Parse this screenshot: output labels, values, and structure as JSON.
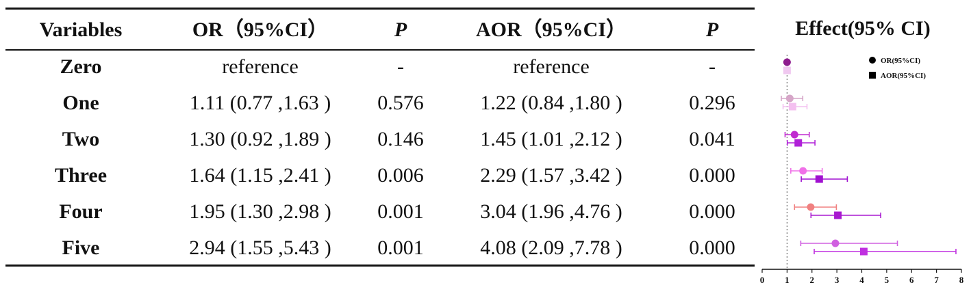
{
  "table": {
    "headers": {
      "variables": "Variables",
      "or": "OR（95%CI）",
      "p1": "P",
      "aor": "AOR（95%CI）",
      "p2": "P"
    },
    "rows": [
      {
        "variable": "Zero",
        "or": "reference",
        "p1": "-",
        "aor": "reference",
        "p2": "-"
      },
      {
        "variable": "One",
        "or": "1.11 (0.77 ,1.63 )",
        "p1": "0.576",
        "aor": "1.22 (0.84 ,1.80 )",
        "p2": "0.296"
      },
      {
        "variable": "Two",
        "or": "1.30 (0.92 ,1.89 )",
        "p1": "0.146",
        "aor": "1.45 (1.01 ,2.12 )",
        "p2": "0.041"
      },
      {
        "variable": "Three",
        "or": "1.64 (1.15 ,2.41 )",
        "p1": "0.006",
        "aor": "2.29 (1.57 ,3.42 )",
        "p2": "0.000"
      },
      {
        "variable": "Four",
        "or": "1.95 (1.30 ,2.98 )",
        "p1": "0.001",
        "aor": "3.04 (1.96 ,4.76 )",
        "p2": "0.000"
      },
      {
        "variable": "Five",
        "or": "2.94 (1.55 ,5.43 )",
        "p1": "0.001",
        "aor": "4.08 (2.09 ,7.78 )",
        "p2": "0.000"
      }
    ]
  },
  "chart_data": {
    "type": "scatter",
    "title": "Effect(95% CI)",
    "xlim": [
      0,
      8
    ],
    "x_ticks": [
      "0",
      "1",
      "2",
      "3",
      "4",
      "5",
      "6",
      "7",
      "8"
    ],
    "reference_line": 1,
    "legend": {
      "placement": "top-right"
    },
    "series": [
      {
        "name": "OR(95%CI)",
        "marker": "circle",
        "points": [
          {
            "y": "Zero",
            "x": 1.0,
            "lo": 1.0,
            "hi": 1.0,
            "color": "#8e1a8e"
          },
          {
            "y": "One",
            "x": 1.11,
            "lo": 0.77,
            "hi": 1.63,
            "color": "#d6a6c8"
          },
          {
            "y": "Two",
            "x": 1.3,
            "lo": 0.92,
            "hi": 1.89,
            "color": "#c02ad0"
          },
          {
            "y": "Three",
            "x": 1.64,
            "lo": 1.15,
            "hi": 2.41,
            "color": "#f070e8"
          },
          {
            "y": "Four",
            "x": 1.95,
            "lo": 1.3,
            "hi": 2.98,
            "color": "#f08080"
          },
          {
            "y": "Five",
            "x": 2.94,
            "lo": 1.55,
            "hi": 5.43,
            "color": "#d060e0"
          }
        ]
      },
      {
        "name": "AOR(95%CI)",
        "marker": "square",
        "points": [
          {
            "y": "Zero",
            "x": 1.0,
            "lo": 1.0,
            "hi": 1.0,
            "color": "#f0c8f0"
          },
          {
            "y": "One",
            "x": 1.22,
            "lo": 0.84,
            "hi": 1.8,
            "color": "#f4c0f0"
          },
          {
            "y": "Two",
            "x": 1.45,
            "lo": 1.01,
            "hi": 2.12,
            "color": "#b020d8"
          },
          {
            "y": "Three",
            "x": 2.29,
            "lo": 1.57,
            "hi": 3.42,
            "color": "#a010d0"
          },
          {
            "y": "Four",
            "x": 3.04,
            "lo": 1.96,
            "hi": 4.76,
            "color": "#a818d0"
          },
          {
            "y": "Five",
            "x": 4.08,
            "lo": 2.09,
            "hi": 7.78,
            "color": "#c030e0"
          }
        ]
      }
    ]
  }
}
